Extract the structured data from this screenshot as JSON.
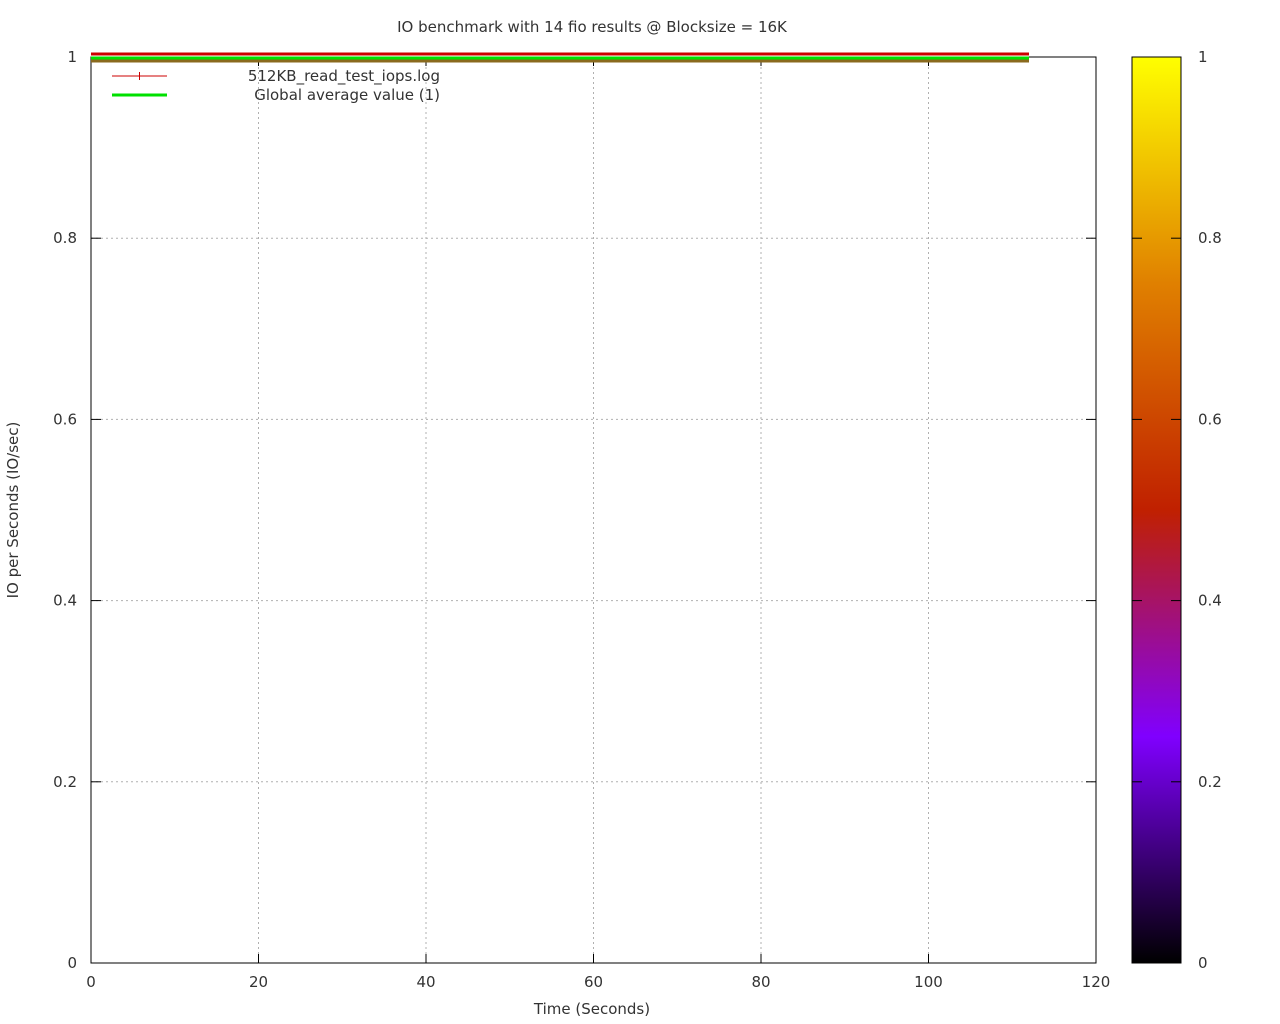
{
  "chart_data": {
    "type": "line",
    "title": "IO benchmark with 14 fio results @ Blocksize = 16K",
    "xlabel": "Time (Seconds)",
    "ylabel": "IO per Seconds (IO/sec)",
    "xlim": [
      0,
      120
    ],
    "ylim": [
      0,
      1
    ],
    "x_ticks": [
      "0",
      "20",
      "40",
      "60",
      "80",
      "100",
      "120"
    ],
    "y_ticks": [
      "0",
      "0.2",
      "0.4",
      "0.6",
      "0.8",
      "1"
    ],
    "grid": true,
    "legend_position": "top-left",
    "series": [
      {
        "name": "512KB_read_test_iops.log",
        "color": "#cc0000",
        "style": "line-points",
        "x": [
          0,
          112
        ],
        "y": [
          1,
          1
        ]
      },
      {
        "name": "Global average value (1)",
        "color": "#00e000",
        "style": "line",
        "x": [
          0,
          112
        ],
        "y": [
          1,
          1
        ]
      }
    ],
    "colorbar": {
      "range": [
        0,
        1
      ],
      "ticks": [
        "0",
        "0.2",
        "0.4",
        "0.6",
        "0.8",
        "1"
      ],
      "colors": [
        "#000000",
        "#8000ff",
        "#c02000",
        "#e08000",
        "#ffff00"
      ]
    }
  }
}
